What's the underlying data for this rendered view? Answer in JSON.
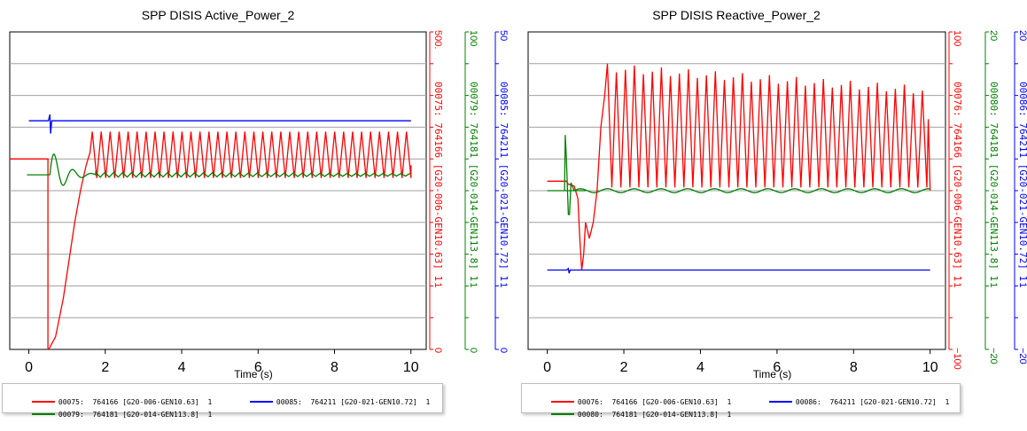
{
  "chart_data": [
    {
      "type": "line",
      "title": "SPP DISIS Active_Power_2",
      "xlabel": "Time (s)",
      "xlim": [
        -0.5,
        10.4
      ],
      "x_ticks": [
        "0",
        "2",
        "4",
        "6",
        "8",
        "10"
      ],
      "grid": true,
      "axes": [
        {
          "id": "a1",
          "color": "#ff0000",
          "ylim": [
            0,
            500
          ],
          "ticks": [
            "0",
            "1",
            "500."
          ],
          "label": "00075: 764166 [G20-006-GEN10.63] 1"
        },
        {
          "id": "a2",
          "color": "#008000",
          "ylim": [
            0,
            100
          ],
          "ticks": [
            "0",
            "1",
            "100"
          ],
          "label": "00079: 764181 [G20-014-GEN113.8] 1"
        },
        {
          "id": "a3",
          "color": "#0000ff",
          "ylim": [
            0,
            50
          ],
          "ticks": [
            "0",
            "1",
            "50"
          ],
          "label": "00085: 764211 [G20-021-GEN10.72] 1"
        }
      ],
      "series": [
        {
          "name": "00075: 764166 [G20-006-GEN10.63] 1",
          "axis": "a1",
          "color": "#ff0000",
          "shape": "active_red",
          "pre": {
            "t": [
              -0.5,
              0.5
            ],
            "value": 300
          },
          "dip": {
            "t": 0.5,
            "min": -50
          },
          "ramp": [
            [
              0.52,
              0
            ],
            [
              0.7,
              20
            ],
            [
              0.9,
              80
            ],
            [
              1.0,
              120
            ],
            [
              1.2,
              200
            ],
            [
              1.35,
              250
            ],
            [
              1.5,
              290
            ],
            [
              1.6,
              310
            ]
          ],
          "oscillation": {
            "t_start": 1.6,
            "t_end": 10.0,
            "period": 0.235,
            "max": 343,
            "min": 270
          }
        },
        {
          "name": "00079: 764181 [G20-014-GEN113.8] 1",
          "axis": "a2",
          "color": "#008000",
          "shape": "active_green",
          "value": 55,
          "disturbance_t": 0.55
        },
        {
          "name": "00085: 764211 [G20-021-GEN10.72] 1",
          "axis": "a3",
          "color": "#0000ff",
          "shape": "flat_spike",
          "value": 36,
          "spike_t": 0.55,
          "spike_hi": 37,
          "spike_lo": 34
        }
      ],
      "legend": {
        "left": [
          {
            "swatch": "#ff0000",
            "text": "00075:  764166 [G20-006-GEN10.63]  1"
          },
          {
            "swatch": "#008000",
            "text": "00079:  764181 [G20-014-GEN113.8]  1"
          }
        ],
        "right": [
          {
            "swatch": "#0000ff",
            "text": "00085:  764211 [G20-021-GEN10.72]  1"
          }
        ]
      }
    },
    {
      "type": "line",
      "title": "SPP DISIS Reactive_Power_2",
      "xlabel": "Time (s)",
      "xlim": [
        -0.5,
        10.4
      ],
      "x_ticks": [
        "0",
        "2",
        "4",
        "6",
        "8",
        "10"
      ],
      "grid": true,
      "axes": [
        {
          "id": "b1",
          "color": "#ff0000",
          "ylim": [
            -100,
            100
          ],
          "ticks": [
            "−100",
            "1",
            "100"
          ],
          "label": "00076: 764166 [G20-006-GEN10.63] 1"
        },
        {
          "id": "b2",
          "color": "#008000",
          "ylim": [
            -20,
            20
          ],
          "ticks": [
            "−20",
            "1",
            "20"
          ],
          "label": "00080: 764181 [G20-014-GEN113.8] 1"
        },
        {
          "id": "b3",
          "color": "#0000ff",
          "ylim": [
            -20,
            20
          ],
          "ticks": [
            "−20",
            "1",
            "20"
          ],
          "label": "00086: 764211 [G20-021-GEN10.72] 1"
        }
      ],
      "series": [
        {
          "name": "00076: 764166 [G20-006-GEN10.63] 1",
          "axis": "b1",
          "color": "#ff0000",
          "shape": "reactive_red",
          "pre": {
            "t": [
              0,
              0.5
            ],
            "value": 6
          },
          "transient": [
            [
              0.5,
              6
            ],
            [
              0.55,
              4
            ],
            [
              0.7,
              3
            ],
            [
              0.8,
              -5
            ],
            [
              0.85,
              -30
            ],
            [
              0.9,
              -50
            ],
            [
              0.95,
              -40
            ],
            [
              1.0,
              -20
            ],
            [
              1.1,
              -30
            ],
            [
              1.2,
              -20
            ],
            [
              1.3,
              0
            ],
            [
              1.4,
              40
            ],
            [
              1.5,
              60
            ]
          ],
          "oscillation": {
            "t_start": 1.5,
            "t_end": 10.0,
            "period": 0.235,
            "max_start": 77,
            "max_end": 63,
            "min": 2
          },
          "end_value": 0
        },
        {
          "name": "00080: 764181 [G20-014-GEN113.8] 1",
          "axis": "b2",
          "color": "#008000",
          "shape": "reactive_green",
          "value": 0,
          "disturbance_t": 0.5,
          "spike_hi": 7,
          "spike_lo": -3
        },
        {
          "name": "00086: 764211 [G20-021-GEN10.72] 1",
          "axis": "b3",
          "color": "#0000ff",
          "shape": "flat_spike",
          "value": -10,
          "spike_t": 0.55,
          "spike_hi": -9.8,
          "spike_lo": -10.4
        }
      ],
      "legend": {
        "left": [
          {
            "swatch": "#ff0000",
            "text": "00076:  764166 [G20-006-GEN10.63]  1"
          },
          {
            "swatch": "#008000",
            "text": "00080:  764181 [G20-014-GEN113.8]  1"
          }
        ],
        "right": [
          {
            "swatch": "#0000ff",
            "text": "00086:  764211 [G20-021-GEN10.72]  1"
          }
        ]
      }
    }
  ]
}
